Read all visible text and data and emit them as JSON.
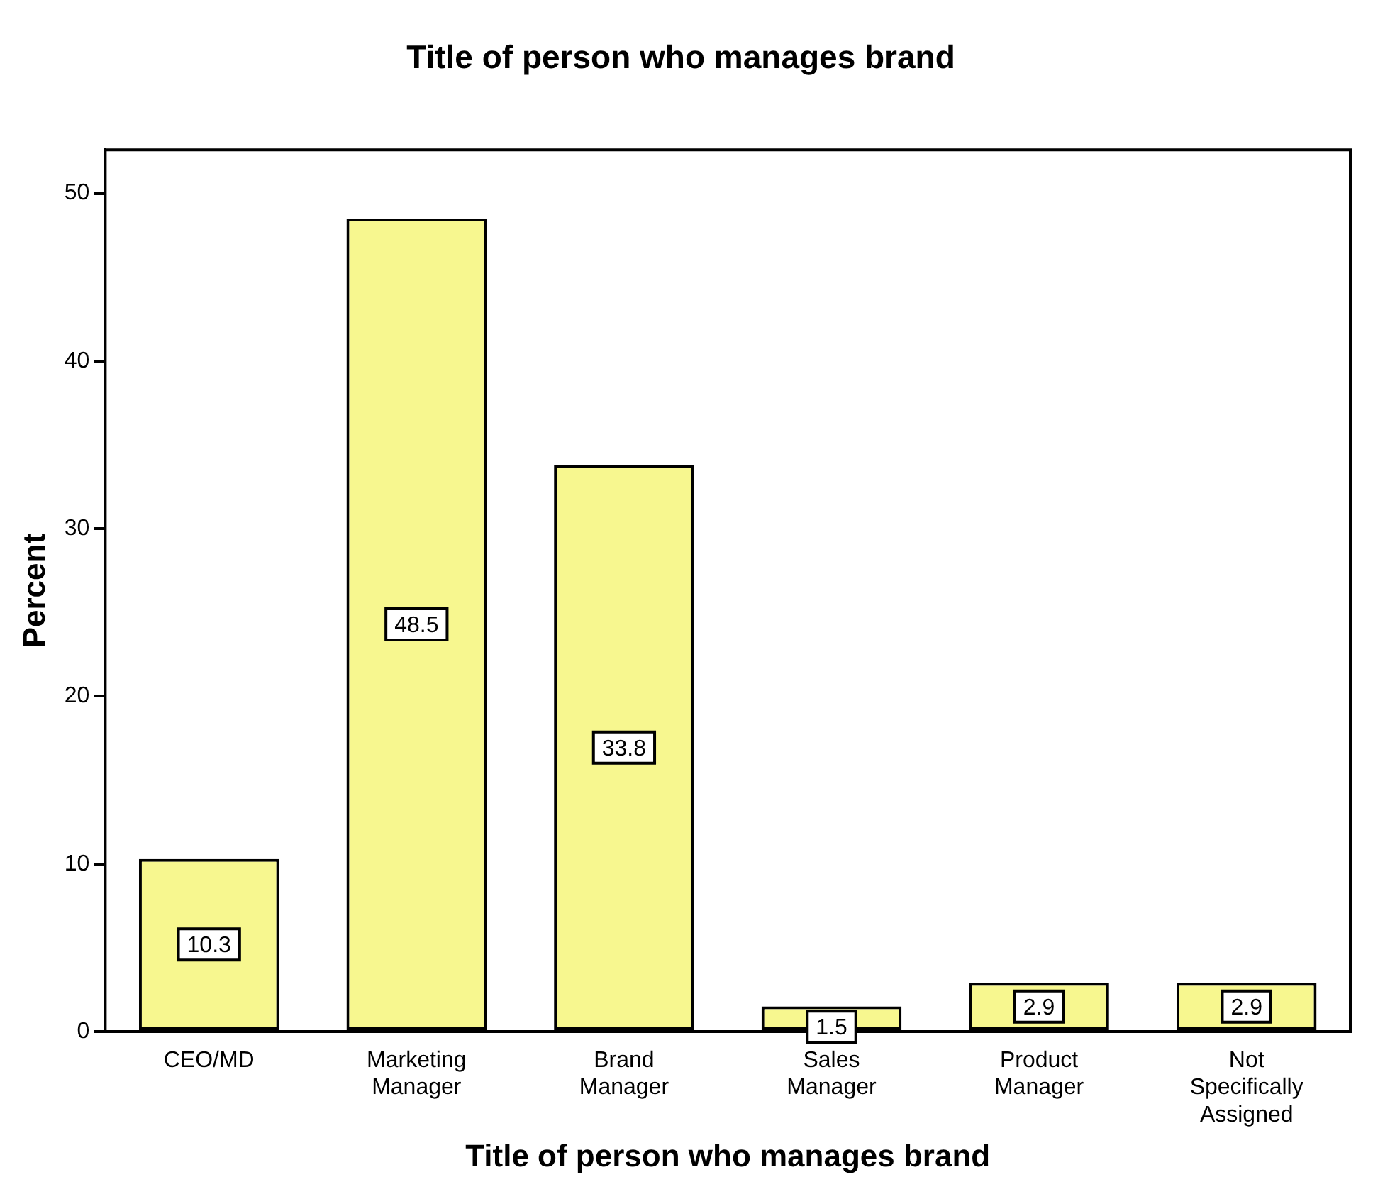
{
  "chart_data": {
    "type": "bar",
    "title": "Title of person who manages brand",
    "xlabel": "Title of person who manages brand",
    "ylabel": "Percent",
    "categories": [
      "CEO/MD",
      "Marketing Manager",
      "Brand Manager",
      "Sales Manager",
      "Product Manager",
      "Not Specifically Assigned"
    ],
    "values": [
      10.3,
      48.5,
      33.8,
      1.5,
      2.9,
      2.9
    ],
    "color": "#f7f78f",
    "ylim": [
      0,
      52.6
    ],
    "yticks": [
      0,
      10,
      20,
      30,
      40,
      50
    ],
    "grid": false,
    "legend": false,
    "data_labels": true
  }
}
